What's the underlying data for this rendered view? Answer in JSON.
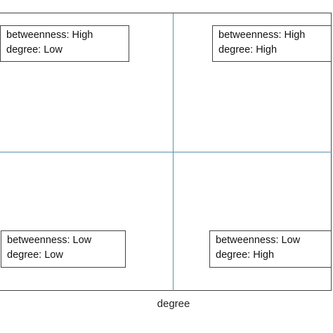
{
  "quadrants": {
    "top_left": {
      "line1": "betweenness: High",
      "line2": "degree: Low"
    },
    "top_right": {
      "line1": "betweenness: High",
      "line2": "degree: High"
    },
    "bottom_left": {
      "line1": "betweenness: Low",
      "line2": "degree: Low"
    },
    "bottom_right": {
      "line1": "betweenness: Low",
      "line2": "degree: High"
    }
  },
  "x_axis_label": "degree",
  "colors": {
    "divider": "#5b8fb0",
    "border": "#444444"
  }
}
